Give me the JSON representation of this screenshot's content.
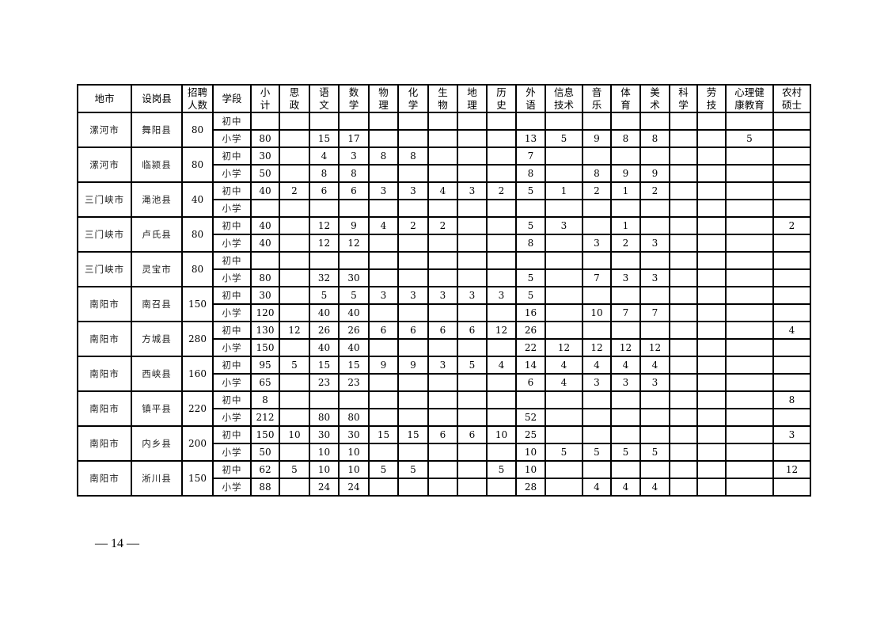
{
  "headers": [
    "地市",
    "设岗县",
    "招聘\n人数",
    "学段",
    "小\n计",
    "思\n政",
    "语\n文",
    "数\n学",
    "物\n理",
    "化\n学",
    "生\n物",
    "地\n理",
    "历\n史",
    "外\n语",
    "信息\n技术",
    "音\n乐",
    "体\n育",
    "美\n术",
    "科\n学",
    "劳\n技",
    "心理健\n康教育",
    "农村\n硕士"
  ],
  "groups": [
    {
      "city": "漯河市",
      "county": "舞阳县",
      "total": "80",
      "rows": [
        {
          "stage": "初中",
          "values": [
            "",
            "",
            "",
            "",
            "",
            "",
            "",
            "",
            "",
            "",
            "",
            "",
            "",
            "",
            "",
            "",
            "",
            ""
          ]
        },
        {
          "stage": "小学",
          "values": [
            "80",
            "",
            "15",
            "17",
            "",
            "",
            "",
            "",
            "",
            "13",
            "5",
            "9",
            "8",
            "8",
            "",
            "",
            "5",
            ""
          ]
        }
      ]
    },
    {
      "city": "漯河市",
      "county": "临颍县",
      "total": "80",
      "rows": [
        {
          "stage": "初中",
          "values": [
            "30",
            "",
            "4",
            "3",
            "8",
            "8",
            "",
            "",
            "",
            "7",
            "",
            "",
            "",
            "",
            "",
            "",
            "",
            ""
          ]
        },
        {
          "stage": "小学",
          "values": [
            "50",
            "",
            "8",
            "8",
            "",
            "",
            "",
            "",
            "",
            "8",
            "",
            "8",
            "9",
            "9",
            "",
            "",
            "",
            ""
          ]
        }
      ]
    },
    {
      "city": "三门峡市",
      "county": "渑池县",
      "total": "40",
      "rows": [
        {
          "stage": "初中",
          "values": [
            "40",
            "2",
            "6",
            "6",
            "3",
            "3",
            "4",
            "3",
            "2",
            "5",
            "1",
            "2",
            "1",
            "2",
            "",
            "",
            "",
            ""
          ]
        },
        {
          "stage": "小学",
          "values": [
            "",
            "",
            "",
            "",
            "",
            "",
            "",
            "",
            "",
            "",
            "",
            "",
            "",
            "",
            "",
            "",
            "",
            ""
          ]
        }
      ]
    },
    {
      "city": "三门峡市",
      "county": "卢氏县",
      "total": "80",
      "rows": [
        {
          "stage": "初中",
          "values": [
            "40",
            "",
            "12",
            "9",
            "4",
            "2",
            "2",
            "",
            "",
            "5",
            "3",
            "",
            "1",
            "",
            "",
            "",
            "",
            "2"
          ]
        },
        {
          "stage": "小学",
          "values": [
            "40",
            "",
            "12",
            "12",
            "",
            "",
            "",
            "",
            "",
            "8",
            "",
            "3",
            "2",
            "3",
            "",
            "",
            "",
            ""
          ]
        }
      ]
    },
    {
      "city": "三门峡市",
      "county": "灵宝市",
      "total": "80",
      "rows": [
        {
          "stage": "初中",
          "values": [
            "",
            "",
            "",
            "",
            "",
            "",
            "",
            "",
            "",
            "",
            "",
            "",
            "",
            "",
            "",
            "",
            "",
            ""
          ]
        },
        {
          "stage": "小学",
          "values": [
            "80",
            "",
            "32",
            "30",
            "",
            "",
            "",
            "",
            "",
            "5",
            "",
            "7",
            "3",
            "3",
            "",
            "",
            "",
            ""
          ]
        }
      ]
    },
    {
      "city": "南阳市",
      "county": "南召县",
      "total": "150",
      "rows": [
        {
          "stage": "初中",
          "values": [
            "30",
            "",
            "5",
            "5",
            "3",
            "3",
            "3",
            "3",
            "3",
            "5",
            "",
            "",
            "",
            "",
            "",
            "",
            "",
            ""
          ]
        },
        {
          "stage": "小学",
          "values": [
            "120",
            "",
            "40",
            "40",
            "",
            "",
            "",
            "",
            "",
            "16",
            "",
            "10",
            "7",
            "7",
            "",
            "",
            "",
            ""
          ]
        }
      ]
    },
    {
      "city": "南阳市",
      "county": "方城县",
      "total": "280",
      "rows": [
        {
          "stage": "初中",
          "values": [
            "130",
            "12",
            "26",
            "26",
            "6",
            "6",
            "6",
            "6",
            "12",
            "26",
            "",
            "",
            "",
            "",
            "",
            "",
            "",
            "4"
          ]
        },
        {
          "stage": "小学",
          "values": [
            "150",
            "",
            "40",
            "40",
            "",
            "",
            "",
            "",
            "",
            "22",
            "12",
            "12",
            "12",
            "12",
            "",
            "",
            "",
            ""
          ]
        }
      ]
    },
    {
      "city": "南阳市",
      "county": "西峡县",
      "total": "160",
      "rows": [
        {
          "stage": "初中",
          "values": [
            "95",
            "5",
            "15",
            "15",
            "9",
            "9",
            "3",
            "5",
            "4",
            "14",
            "4",
            "4",
            "4",
            "4",
            "",
            "",
            "",
            ""
          ]
        },
        {
          "stage": "小学",
          "values": [
            "65",
            "",
            "23",
            "23",
            "",
            "",
            "",
            "",
            "",
            "6",
            "4",
            "3",
            "3",
            "3",
            "",
            "",
            "",
            ""
          ]
        }
      ]
    },
    {
      "city": "南阳市",
      "county": "镇平县",
      "total": "220",
      "rows": [
        {
          "stage": "初中",
          "values": [
            "8",
            "",
            "",
            "",
            "",
            "",
            "",
            "",
            "",
            "",
            "",
            "",
            "",
            "",
            "",
            "",
            "",
            "8"
          ]
        },
        {
          "stage": "小学",
          "values": [
            "212",
            "",
            "80",
            "80",
            "",
            "",
            "",
            "",
            "",
            "52",
            "",
            "",
            "",
            "",
            "",
            "",
            "",
            ""
          ]
        }
      ]
    },
    {
      "city": "南阳市",
      "county": "内乡县",
      "total": "200",
      "rows": [
        {
          "stage": "初中",
          "values": [
            "150",
            "10",
            "30",
            "30",
            "15",
            "15",
            "6",
            "6",
            "10",
            "25",
            "",
            "",
            "",
            "",
            "",
            "",
            "",
            "3"
          ]
        },
        {
          "stage": "小学",
          "values": [
            "50",
            "",
            "10",
            "10",
            "",
            "",
            "",
            "",
            "",
            "10",
            "5",
            "5",
            "5",
            "5",
            "",
            "",
            "",
            ""
          ]
        }
      ]
    },
    {
      "city": "南阳市",
      "county": "淅川县",
      "total": "150",
      "rows": [
        {
          "stage": "初中",
          "values": [
            "62",
            "5",
            "10",
            "10",
            "5",
            "5",
            "",
            "",
            "5",
            "10",
            "",
            "",
            "",
            "",
            "",
            "",
            "",
            "12"
          ]
        },
        {
          "stage": "小学",
          "values": [
            "88",
            "",
            "24",
            "24",
            "",
            "",
            "",
            "",
            "",
            "28",
            "",
            "4",
            "4",
            "4",
            "",
            "",
            "",
            ""
          ]
        }
      ]
    }
  ],
  "footer": {
    "page_number": "— 14 —"
  }
}
